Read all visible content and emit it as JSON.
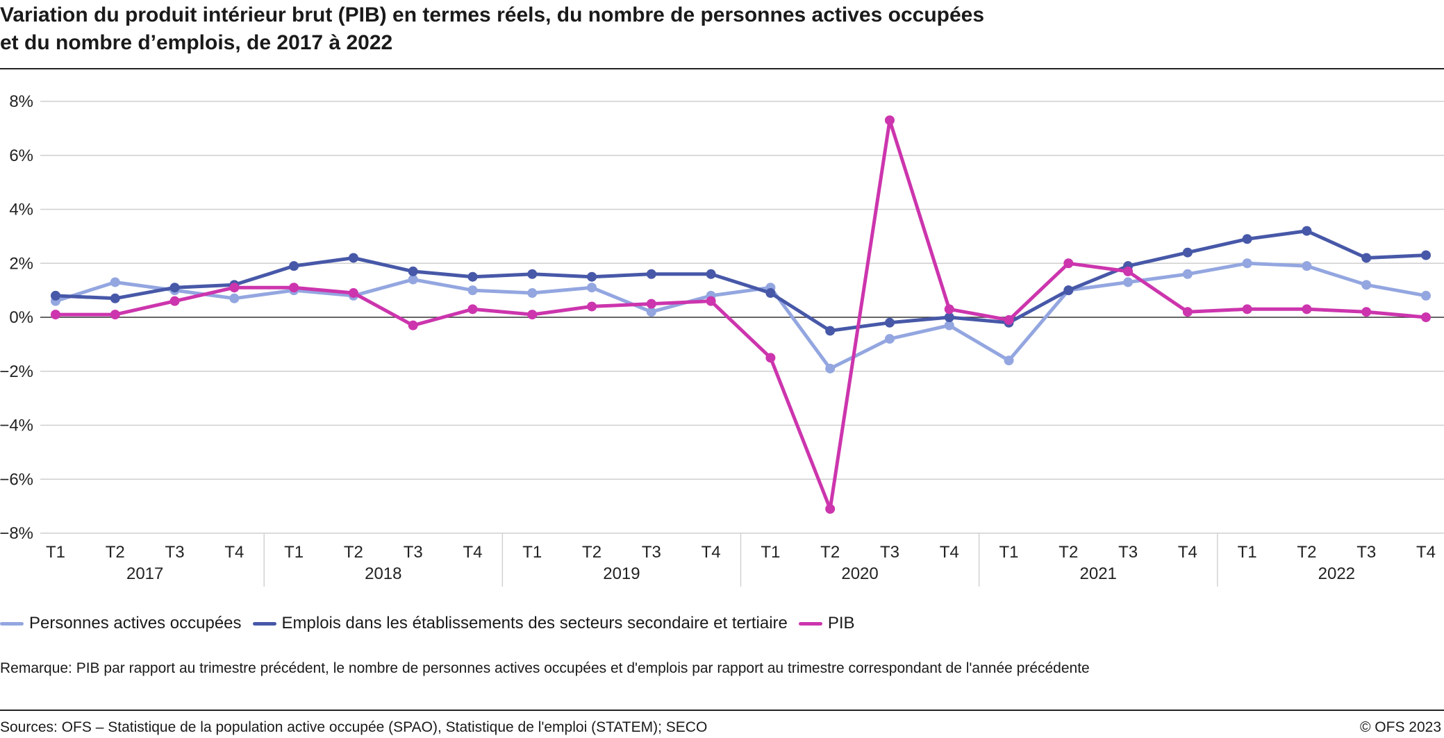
{
  "title": {
    "line1": "Variation du produit intérieur brut (PIB) en termes réels, du nombre de personnes actives occupées",
    "line2": "et du nombre d’emplois, de 2017 à 2022"
  },
  "chart_data": {
    "type": "line",
    "y_ticks": [
      "8%",
      "6%",
      "4%",
      "2%",
      "0%",
      "−2%",
      "−4%",
      "−6%",
      "−8%"
    ],
    "ylim": [
      -8,
      8
    ],
    "years": [
      "2017",
      "2018",
      "2019",
      "2020",
      "2021",
      "2022"
    ],
    "quarters": [
      "T1",
      "T2",
      "T3",
      "T4"
    ],
    "grid": true,
    "legend_position": "bottom-left",
    "series": [
      {
        "name": "Personnes actives occupées",
        "color": "#93a6e0",
        "values": [
          0.6,
          1.3,
          1.0,
          0.7,
          1.0,
          0.8,
          1.4,
          1.0,
          0.9,
          1.1,
          0.2,
          0.8,
          1.1,
          -1.9,
          -0.8,
          -0.3,
          -1.6,
          1.0,
          1.3,
          1.6,
          2.0,
          1.9,
          1.2,
          0.8
        ]
      },
      {
        "name": "Emplois dans les établissements des secteurs secondaire et tertiaire",
        "color": "#4758a8",
        "values": [
          0.8,
          0.7,
          1.1,
          1.2,
          1.9,
          2.2,
          1.7,
          1.5,
          1.6,
          1.5,
          1.6,
          1.6,
          0.9,
          -0.5,
          -0.2,
          0.0,
          -0.2,
          1.0,
          1.9,
          2.4,
          2.9,
          3.2,
          2.2,
          2.3
        ]
      },
      {
        "name": "PIB",
        "color": "#cc35ad",
        "values": [
          0.1,
          0.1,
          0.6,
          1.1,
          1.1,
          0.9,
          -0.3,
          0.3,
          0.1,
          0.4,
          0.5,
          0.6,
          -1.5,
          -7.1,
          7.3,
          0.3,
          -0.1,
          2.0,
          1.7,
          0.2,
          0.3,
          0.3,
          0.2,
          0.0
        ]
      }
    ]
  },
  "note": "Remarque: PIB par rapport au trimestre précédent, le nombre de personnes actives occupées et d'emplois par rapport au trimestre correspondant de l'année précédente",
  "footer": {
    "sources": "Sources: OFS – Statistique de la population active occupée (SPAO), Statistique de l'emploi (STATEM); SECO",
    "copyright": "© OFS 2023"
  }
}
